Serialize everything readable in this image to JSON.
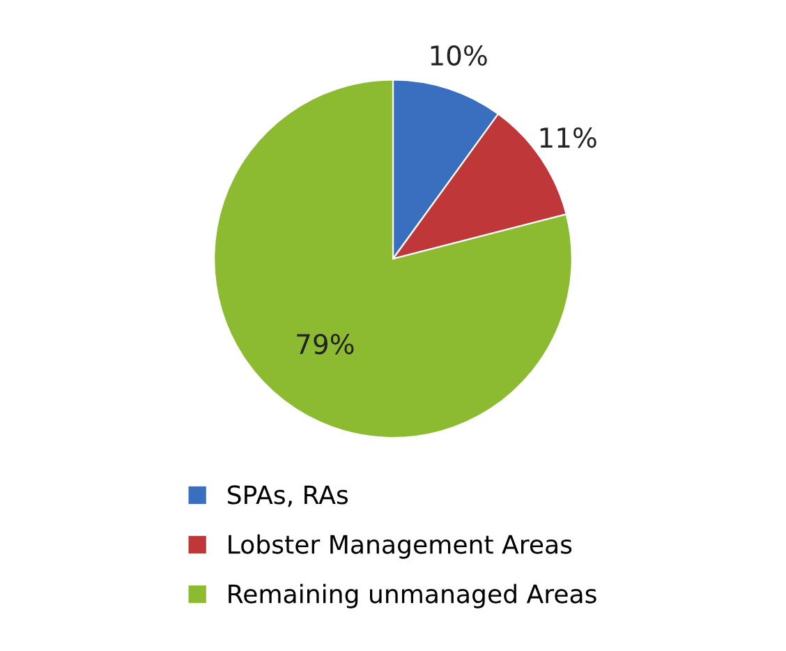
{
  "chart_data": {
    "type": "pie",
    "categories": [
      "SPAs, RAs",
      "Lobster Management Areas",
      "Remaining unmanaged Areas"
    ],
    "values": [
      10,
      11,
      79
    ],
    "colors": [
      "#3a6fc0",
      "#c0373a",
      "#8cba30"
    ],
    "value_labels": [
      "10%",
      "11%",
      "79%"
    ],
    "legend": "bottom"
  }
}
